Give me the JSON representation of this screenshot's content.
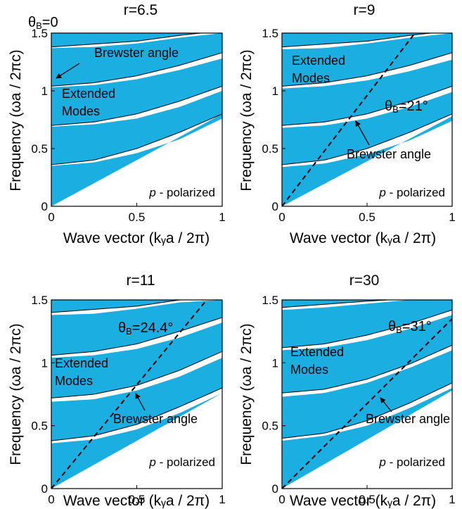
{
  "figure": {
    "colors": {
      "band": "#1aaee1",
      "background": "#ffffff",
      "ink": "#000000"
    },
    "ylabel": "Frequency (ωa / 2πc)",
    "xlabel": "Wave vector (kᵧa / 2π)",
    "panels": [
      {
        "title": "r=6.5",
        "theta_symbol": "θ",
        "theta_sub": "B",
        "theta_value": "=0",
        "annotations": {
          "brewster": "Brewster angle",
          "extended_1": "Extended",
          "extended_2": "Modes",
          "polarization": "p",
          "polarization_suffix": " - polarized"
        }
      },
      {
        "title": "r=9",
        "theta_symbol": "θ",
        "theta_sub": "B",
        "theta_value": "=21°",
        "annotations": {
          "brewster": "Brewster angle",
          "extended_1": "Extended",
          "extended_2": "Modes",
          "polarization": "p",
          "polarization_suffix": " - polarized"
        }
      },
      {
        "title": "r=11",
        "theta_symbol": "θ",
        "theta_sub": "B",
        "theta_value": "=24.4°",
        "annotations": {
          "brewster": "Brewster angle",
          "extended_1": "Extended",
          "extended_2": "Modes",
          "polarization": "p",
          "polarization_suffix": " - polarized"
        }
      },
      {
        "title": "r=30",
        "theta_symbol": "θ",
        "theta_sub": "B",
        "theta_value": "=31°",
        "annotations": {
          "brewster": "Brewster angle",
          "extended_1": "Extended",
          "extended_2": "Modes",
          "polarization": "p",
          "polarization_suffix": " - polarized"
        }
      }
    ]
  },
  "chart_data": [
    {
      "type": "area",
      "title": "r=6.5",
      "xlabel": "Wave vector (kᵧa / 2π)",
      "ylabel": "Frequency (ωa / 2πc)",
      "xlim": [
        0,
        1
      ],
      "ylim": [
        0,
        1.5
      ],
      "xticks": [
        {
          "v": 0,
          "label": "0"
        },
        {
          "v": 0.5,
          "label": "0.5"
        },
        {
          "v": 1,
          "label": "1"
        }
      ],
      "yticks": [
        {
          "v": 0,
          "label": "0"
        },
        {
          "v": 0.5,
          "label": "0.5"
        },
        {
          "v": 1,
          "label": "1"
        },
        {
          "v": 1.5,
          "label": "1.5"
        }
      ],
      "grid": false,
      "brewster_line_slope": null,
      "bands": [
        {
          "lower": [
            [
              0,
              0
            ],
            [
              1,
              0.8
            ]
          ],
          "upper": [
            [
              0,
              0.35
            ],
            [
              0.25,
              0.38
            ],
            [
              0.5,
              0.46
            ],
            [
              0.75,
              0.58
            ],
            [
              1,
              0.76
            ]
          ]
        },
        {
          "lower": [
            [
              0,
              0.36
            ],
            [
              0.25,
              0.4
            ],
            [
              0.5,
              0.5
            ],
            [
              0.75,
              0.64
            ],
            [
              1,
              0.8
            ]
          ],
          "upper": [
            [
              0,
              0.69
            ],
            [
              0.25,
              0.71
            ],
            [
              0.5,
              0.76
            ],
            [
              0.75,
              0.86
            ],
            [
              1,
              1.0
            ]
          ]
        },
        {
          "lower": [
            [
              0,
              0.7
            ],
            [
              0.25,
              0.73
            ],
            [
              0.5,
              0.8
            ],
            [
              0.75,
              0.91
            ],
            [
              1,
              1.04
            ]
          ],
          "upper": [
            [
              0,
              1.03
            ],
            [
              0.25,
              1.05
            ],
            [
              0.5,
              1.1
            ],
            [
              0.75,
              1.18
            ],
            [
              1,
              1.28
            ]
          ]
        },
        {
          "lower": [
            [
              0,
              1.04
            ],
            [
              0.25,
              1.07
            ],
            [
              0.5,
              1.13
            ],
            [
              0.75,
              1.22
            ],
            [
              1,
              1.33
            ]
          ],
          "upper": [
            [
              0,
              1.37
            ],
            [
              0.25,
              1.38
            ],
            [
              0.5,
              1.41
            ],
            [
              0.75,
              1.46
            ],
            [
              1,
              1.5
            ]
          ]
        },
        {
          "lower": [
            [
              0,
              1.38
            ],
            [
              0.5,
              1.43
            ],
            [
              0.75,
              1.48
            ],
            [
              1,
              1.52
            ]
          ],
          "upper": [
            [
              0,
              1.5
            ],
            [
              1,
              1.5
            ]
          ]
        }
      ]
    },
    {
      "type": "area",
      "title": "r=9",
      "xlabel": "Wave vector (kᵧa / 2π)",
      "ylabel": "Frequency (ωa / 2πc)",
      "xlim": [
        0,
        1
      ],
      "ylim": [
        0,
        1.5
      ],
      "xticks": [
        {
          "v": 0,
          "label": "0"
        },
        {
          "v": 0.5,
          "label": "0.5"
        },
        {
          "v": 1,
          "label": "1"
        }
      ],
      "yticks": [
        {
          "v": 0,
          "label": "0"
        },
        {
          "v": 0.5,
          "label": "0.5"
        },
        {
          "v": 1,
          "label": "1"
        },
        {
          "v": 1.5,
          "label": "1.5"
        }
      ],
      "grid": false,
      "brewster_line_slope": 1.92,
      "bands": [
        {
          "lower": [
            [
              0,
              0
            ],
            [
              1,
              0.78
            ]
          ],
          "upper": [
            [
              0,
              0.34
            ],
            [
              0.25,
              0.37
            ],
            [
              0.5,
              0.45
            ],
            [
              0.75,
              0.57
            ],
            [
              1,
              0.74
            ]
          ]
        },
        {
          "lower": [
            [
              0,
              0.36
            ],
            [
              0.25,
              0.4
            ],
            [
              0.5,
              0.5
            ],
            [
              0.75,
              0.64
            ],
            [
              1,
              0.8
            ]
          ],
          "upper": [
            [
              0,
              0.68
            ],
            [
              0.25,
              0.7
            ],
            [
              0.5,
              0.76
            ],
            [
              0.75,
              0.86
            ],
            [
              1,
              0.99
            ]
          ]
        },
        {
          "lower": [
            [
              0,
              0.7
            ],
            [
              0.25,
              0.73
            ],
            [
              0.5,
              0.8
            ],
            [
              0.75,
              0.91
            ],
            [
              1,
              1.04
            ]
          ],
          "upper": [
            [
              0,
              1.02
            ],
            [
              0.25,
              1.04
            ],
            [
              0.5,
              1.09
            ],
            [
              0.75,
              1.17
            ],
            [
              1,
              1.27
            ]
          ]
        },
        {
          "lower": [
            [
              0,
              1.04
            ],
            [
              0.25,
              1.07
            ],
            [
              0.5,
              1.13
            ],
            [
              0.75,
              1.22
            ],
            [
              1,
              1.33
            ]
          ],
          "upper": [
            [
              0,
              1.36
            ],
            [
              0.25,
              1.37
            ],
            [
              0.5,
              1.41
            ],
            [
              0.75,
              1.46
            ],
            [
              1,
              1.5
            ]
          ]
        },
        {
          "lower": [
            [
              0,
              1.38
            ],
            [
              0.5,
              1.43
            ],
            [
              0.75,
              1.48
            ],
            [
              1,
              1.52
            ]
          ],
          "upper": [
            [
              0,
              1.5
            ],
            [
              1,
              1.5
            ]
          ]
        }
      ]
    },
    {
      "type": "area",
      "title": "r=11",
      "xlabel": "Wave vector (kᵧa / 2π)",
      "ylabel": "Frequency (ωa / 2πc)",
      "xlim": [
        0,
        1
      ],
      "ylim": [
        0,
        1.5
      ],
      "xticks": [
        {
          "v": 0,
          "label": "0"
        },
        {
          "v": 0.5,
          "label": "0.5"
        },
        {
          "v": 1,
          "label": "1"
        }
      ],
      "yticks": [
        {
          "v": 0,
          "label": "0"
        },
        {
          "v": 0.5,
          "label": "0.5"
        },
        {
          "v": 1,
          "label": "1"
        },
        {
          "v": 1.5,
          "label": "1.5"
        }
      ],
      "grid": false,
      "brewster_line_slope": 1.65,
      "bands": [
        {
          "lower": [
            [
              0,
              0
            ],
            [
              1,
              0.76
            ]
          ],
          "upper": [
            [
              0,
              0.36
            ],
            [
              0.25,
              0.39
            ],
            [
              0.5,
              0.47
            ],
            [
              0.75,
              0.6
            ],
            [
              1,
              0.76
            ]
          ]
        },
        {
          "lower": [
            [
              0,
              0.38
            ],
            [
              0.25,
              0.42
            ],
            [
              0.5,
              0.51
            ],
            [
              0.75,
              0.65
            ],
            [
              1,
              0.8
            ]
          ],
          "upper": [
            [
              0,
              0.69
            ],
            [
              0.25,
              0.71
            ],
            [
              0.5,
              0.78
            ],
            [
              0.75,
              0.89
            ],
            [
              1,
              1.04
            ]
          ]
        },
        {
          "lower": [
            [
              0,
              0.72
            ],
            [
              0.25,
              0.75
            ],
            [
              0.5,
              0.82
            ],
            [
              0.75,
              0.94
            ],
            [
              1,
              1.09
            ]
          ],
          "upper": [
            [
              0,
              1.04
            ],
            [
              0.25,
              1.06
            ],
            [
              0.5,
              1.11
            ],
            [
              0.75,
              1.2
            ],
            [
              1,
              1.32
            ]
          ]
        },
        {
          "lower": [
            [
              0,
              1.06
            ],
            [
              0.25,
              1.09
            ],
            [
              0.5,
              1.15
            ],
            [
              0.75,
              1.25
            ],
            [
              1,
              1.36
            ]
          ],
          "upper": [
            [
              0,
              1.38
            ],
            [
              0.25,
              1.39
            ],
            [
              0.5,
              1.43
            ],
            [
              0.75,
              1.48
            ],
            [
              1,
              1.5
            ]
          ]
        },
        {
          "lower": [
            [
              0,
              1.4
            ],
            [
              0.5,
              1.45
            ],
            [
              0.75,
              1.5
            ],
            [
              1,
              1.52
            ]
          ],
          "upper": [
            [
              0,
              1.5
            ],
            [
              1,
              1.5
            ]
          ]
        }
      ]
    },
    {
      "type": "area",
      "title": "r=30",
      "xlabel": "Wave vector (kᵧa / 2π)",
      "ylabel": "Frequency (ωa / 2πc)",
      "xlim": [
        0,
        1
      ],
      "ylim": [
        0,
        1.5
      ],
      "xticks": [
        {
          "v": 0,
          "label": "0"
        },
        {
          "v": 0.5,
          "label": "0.5"
        },
        {
          "v": 1,
          "label": "1"
        }
      ],
      "yticks": [
        {
          "v": 0,
          "label": "0"
        },
        {
          "v": 0.5,
          "label": "0.5"
        },
        {
          "v": 1,
          "label": "1"
        },
        {
          "v": 1.5,
          "label": "1.5"
        }
      ],
      "grid": false,
      "brewster_line_slope": 1.35,
      "bands": [
        {
          "lower": [
            [
              0,
              0
            ],
            [
              1,
              0.78
            ]
          ],
          "upper": [
            [
              0,
              0.38
            ],
            [
              0.25,
              0.42
            ],
            [
              0.5,
              0.5
            ],
            [
              0.75,
              0.64
            ],
            [
              1,
              0.8
            ]
          ]
        },
        {
          "lower": [
            [
              0,
              0.4
            ],
            [
              0.25,
              0.44
            ],
            [
              0.5,
              0.54
            ],
            [
              0.75,
              0.68
            ],
            [
              1,
              0.84
            ]
          ],
          "upper": [
            [
              0,
              0.73
            ],
            [
              0.25,
              0.76
            ],
            [
              0.5,
              0.84
            ],
            [
              0.75,
              0.96
            ],
            [
              1,
              1.1
            ]
          ]
        },
        {
          "lower": [
            [
              0,
              0.76
            ],
            [
              0.25,
              0.79
            ],
            [
              0.5,
              0.87
            ],
            [
              0.75,
              0.99
            ],
            [
              1,
              1.14
            ]
          ],
          "upper": [
            [
              0,
              1.1
            ],
            [
              0.25,
              1.12
            ],
            [
              0.5,
              1.18
            ],
            [
              0.75,
              1.27
            ],
            [
              1,
              1.38
            ]
          ]
        },
        {
          "lower": [
            [
              0,
              1.12
            ],
            [
              0.25,
              1.15
            ],
            [
              0.5,
              1.22
            ],
            [
              0.75,
              1.31
            ],
            [
              1,
              1.42
            ]
          ],
          "upper": [
            [
              0,
              1.42
            ],
            [
              0.25,
              1.44
            ],
            [
              0.5,
              1.47
            ],
            [
              0.75,
              1.5
            ],
            [
              1,
              1.5
            ]
          ]
        },
        {
          "lower": [
            [
              0,
              1.44
            ],
            [
              0.5,
              1.49
            ],
            [
              1,
              1.53
            ]
          ],
          "upper": [
            [
              0,
              1.5
            ],
            [
              1,
              1.5
            ]
          ]
        }
      ]
    }
  ]
}
